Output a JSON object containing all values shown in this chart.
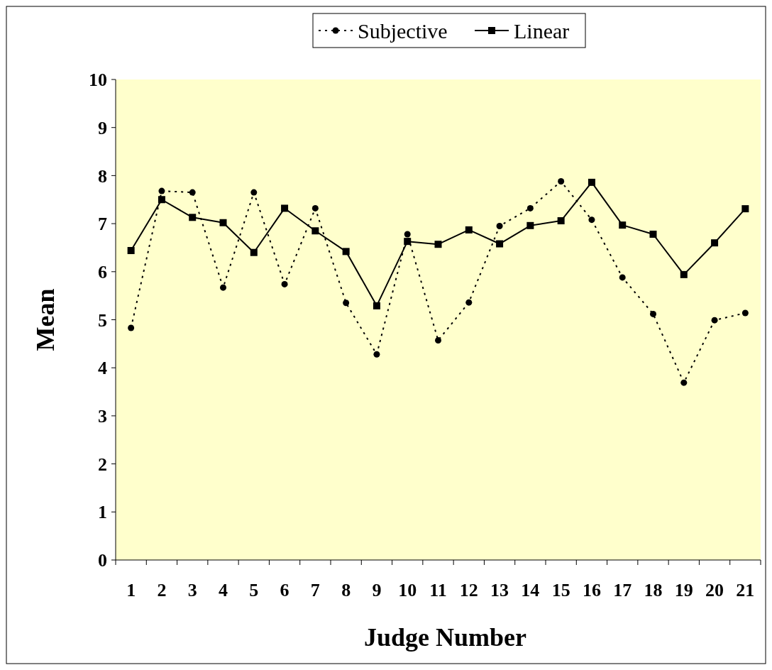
{
  "chart_data": {
    "type": "line",
    "xlabel": "Judge Number",
    "ylabel": "Mean",
    "categories": [
      "1",
      "2",
      "3",
      "4",
      "5",
      "6",
      "7",
      "8",
      "9",
      "10",
      "11",
      "12",
      "13",
      "14",
      "15",
      "16",
      "17",
      "18",
      "19",
      "20",
      "21"
    ],
    "ylim": [
      0,
      10
    ],
    "yticks": [
      0,
      1,
      2,
      3,
      4,
      5,
      6,
      7,
      8,
      9,
      10
    ],
    "grid": false,
    "legend": "top",
    "series": [
      {
        "name": "Subjective",
        "color": "#000000",
        "marker": "circle",
        "line_style": "dotted",
        "values": [
          4.83,
          7.68,
          7.65,
          5.67,
          7.65,
          5.74,
          7.32,
          5.35,
          4.28,
          6.78,
          4.57,
          5.36,
          6.95,
          7.32,
          7.88,
          7.08,
          5.88,
          5.12,
          3.69,
          4.99,
          5.14
        ]
      },
      {
        "name": "Linear",
        "color": "#000000",
        "marker": "square",
        "line_style": "solid",
        "values": [
          6.44,
          7.5,
          7.13,
          7.02,
          6.4,
          7.32,
          6.85,
          6.42,
          5.29,
          6.63,
          6.57,
          6.87,
          6.58,
          6.96,
          7.06,
          7.86,
          6.97,
          6.78,
          5.94,
          6.6,
          7.31
        ]
      }
    ]
  }
}
